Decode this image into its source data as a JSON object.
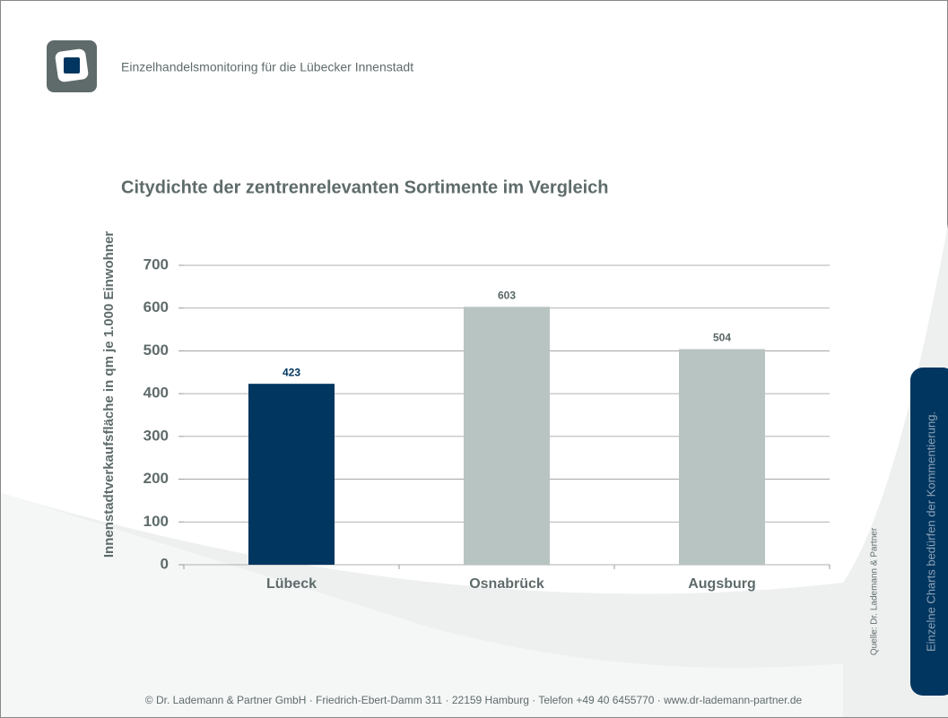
{
  "header": {
    "title": "Einzelhandelsmonitoring für die Lübecker Innenstadt"
  },
  "chart_data": {
    "type": "bar",
    "title": "Citydichte der zentrenrelevanten Sortimente im Vergleich",
    "y_label": "Innenstadtverkaufsfläche in qm je 1.000 Einwohner",
    "categories": [
      "Lübeck",
      "Osnabrück",
      "Augsburg"
    ],
    "values": [
      423,
      603,
      504
    ],
    "colors": [
      "#003660",
      "#b8c4c2",
      "#b8c4c2"
    ],
    "label_colors": [
      "#003660",
      "#5a6666",
      "#5a6666"
    ],
    "ylim": [
      0,
      700
    ],
    "yticks": [
      0,
      100,
      200,
      300,
      400,
      500,
      600,
      700
    ],
    "grid": true
  },
  "source": "Quelle: Dr. Lademann & Partner",
  "side_note": "Einzelne Charts bedürfen der Kommentierung.",
  "footer": "© Dr. Lademann & Partner GmbH · Friedrich-Ebert-Damm 311 · 22159 Hamburg · Telefon +49 40 6455770 · www.dr-lademann-partner.de"
}
